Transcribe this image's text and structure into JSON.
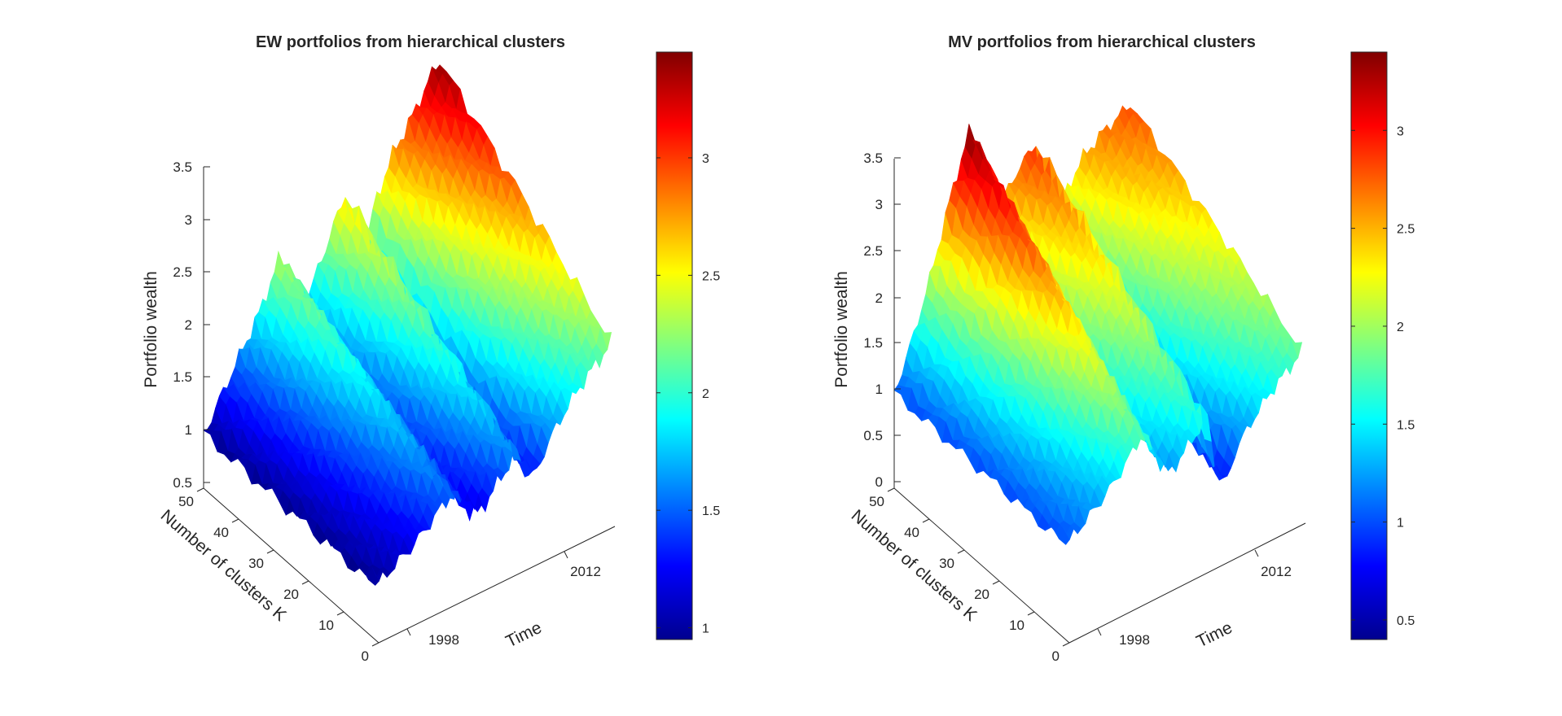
{
  "chart_data": [
    {
      "type": "surface",
      "title": "EW portfolios from hierarchical clusters",
      "xlabel": "Time",
      "ylabel": "Number of clusters K",
      "zlabel": "Portfolio wealth",
      "x_ticks": [
        "1998",
        "2012"
      ],
      "y_ticks": [
        "0",
        "10",
        "20",
        "30",
        "40",
        "50"
      ],
      "z_ticks": [
        "0.5",
        "1",
        "1.5",
        "2",
        "2.5",
        "3",
        "3.5"
      ],
      "xlim": [
        1992,
        2017
      ],
      "ylim": [
        0,
        50
      ],
      "zlim": [
        0.5,
        3.5
      ],
      "colormap": "jet",
      "colorbar": {
        "ticks": [
          "1",
          "1.5",
          "2",
          "2.5",
          "3"
        ],
        "range": [
          0.95,
          3.45
        ]
      },
      "wealth_profile": {
        "x": [
          1992,
          1994,
          1996,
          1998,
          2000,
          2001,
          2002,
          2003,
          2005,
          2007,
          2008,
          2009,
          2010,
          2012,
          2014,
          2016,
          2017
        ],
        "k1": [
          1.0,
          1.1,
          1.2,
          1.35,
          1.5,
          1.4,
          1.25,
          1.2,
          1.4,
          1.6,
          1.35,
          1.3,
          1.5,
          1.75,
          1.95,
          2.1,
          2.2
        ],
        "k50": [
          1.0,
          1.3,
          1.6,
          1.9,
          2.3,
          2.15,
          1.85,
          1.8,
          2.2,
          2.6,
          2.0,
          1.9,
          2.35,
          2.75,
          3.0,
          3.3,
          3.4
        ]
      }
    },
    {
      "type": "surface",
      "title": "MV portfolios from hierarchical clusters",
      "xlabel": "Time",
      "ylabel": "Number of clusters K",
      "zlabel": "Portfolio wealth",
      "x_ticks": [
        "1998",
        "2012"
      ],
      "y_ticks": [
        "0",
        "10",
        "20",
        "30",
        "40",
        "50"
      ],
      "z_ticks": [
        "0",
        "0.5",
        "1",
        "1.5",
        "2",
        "2.5",
        "3",
        "3.5"
      ],
      "xlim": [
        1992,
        2017
      ],
      "ylim": [
        0,
        50
      ],
      "zlim": [
        0,
        3.5
      ],
      "colormap": "jet",
      "colorbar": {
        "ticks": [
          "0.5",
          "1",
          "1.5",
          "2",
          "2.5",
          "3"
        ],
        "range": [
          0.4,
          3.4
        ]
      },
      "wealth_profile": {
        "x": [
          1992,
          1994,
          1996,
          1998,
          2000,
          2001,
          2002,
          2003,
          2005,
          2007,
          2008,
          2009,
          2010,
          2012,
          2014,
          2016,
          2017
        ],
        "k1": [
          1.0,
          1.15,
          1.3,
          1.5,
          1.75,
          1.6,
          1.35,
          1.2,
          1.4,
          1.6,
          0.9,
          0.8,
          1.1,
          1.35,
          1.55,
          1.7,
          1.8
        ],
        "k50": [
          1.0,
          1.5,
          2.1,
          2.8,
          3.4,
          3.1,
          2.6,
          2.4,
          2.7,
          2.9,
          1.9,
          1.8,
          2.2,
          2.5,
          2.65,
          2.75,
          2.8
        ]
      }
    }
  ]
}
